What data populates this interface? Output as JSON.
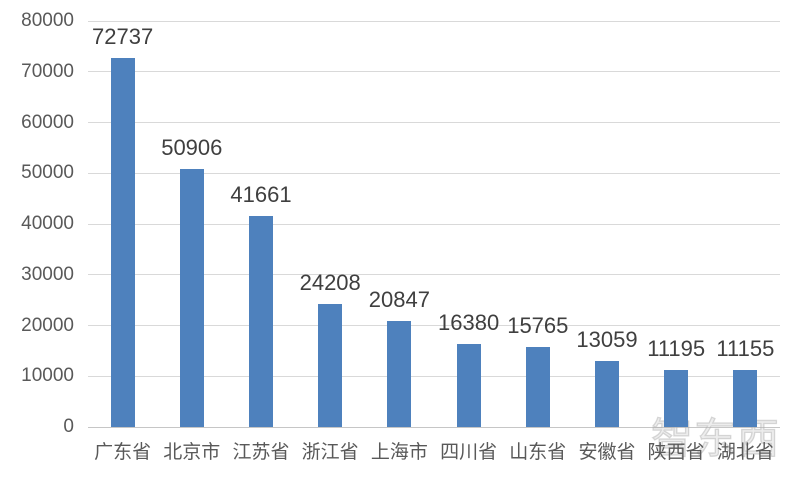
{
  "chart_data": {
    "type": "bar",
    "categories": [
      "广东省",
      "北京市",
      "江苏省",
      "浙江省",
      "上海市",
      "四川省",
      "山东省",
      "安徽省",
      "陕西省",
      "湖北省"
    ],
    "values": [
      72737,
      50906,
      41661,
      24208,
      20847,
      16380,
      15765,
      13059,
      11195,
      11155
    ],
    "title": "",
    "xlabel": "",
    "ylabel": "",
    "ylim": [
      0,
      80000
    ],
    "ytick_step": 10000,
    "ytick_labels": [
      "0",
      "10000",
      "20000",
      "30000",
      "40000",
      "50000",
      "60000",
      "70000",
      "80000"
    ],
    "grid": "horizontal",
    "legend_position": "none",
    "data_labels": "outside-end"
  },
  "watermark": {
    "text": "智东西"
  },
  "colors": {
    "background": "#FFFFFF",
    "bar": "#4E81BD",
    "gridline": "#D9D9D9",
    "axis_line": "#C6C6C6",
    "axis_text": "#595959",
    "value_label_text": "#3F3F3F"
  }
}
